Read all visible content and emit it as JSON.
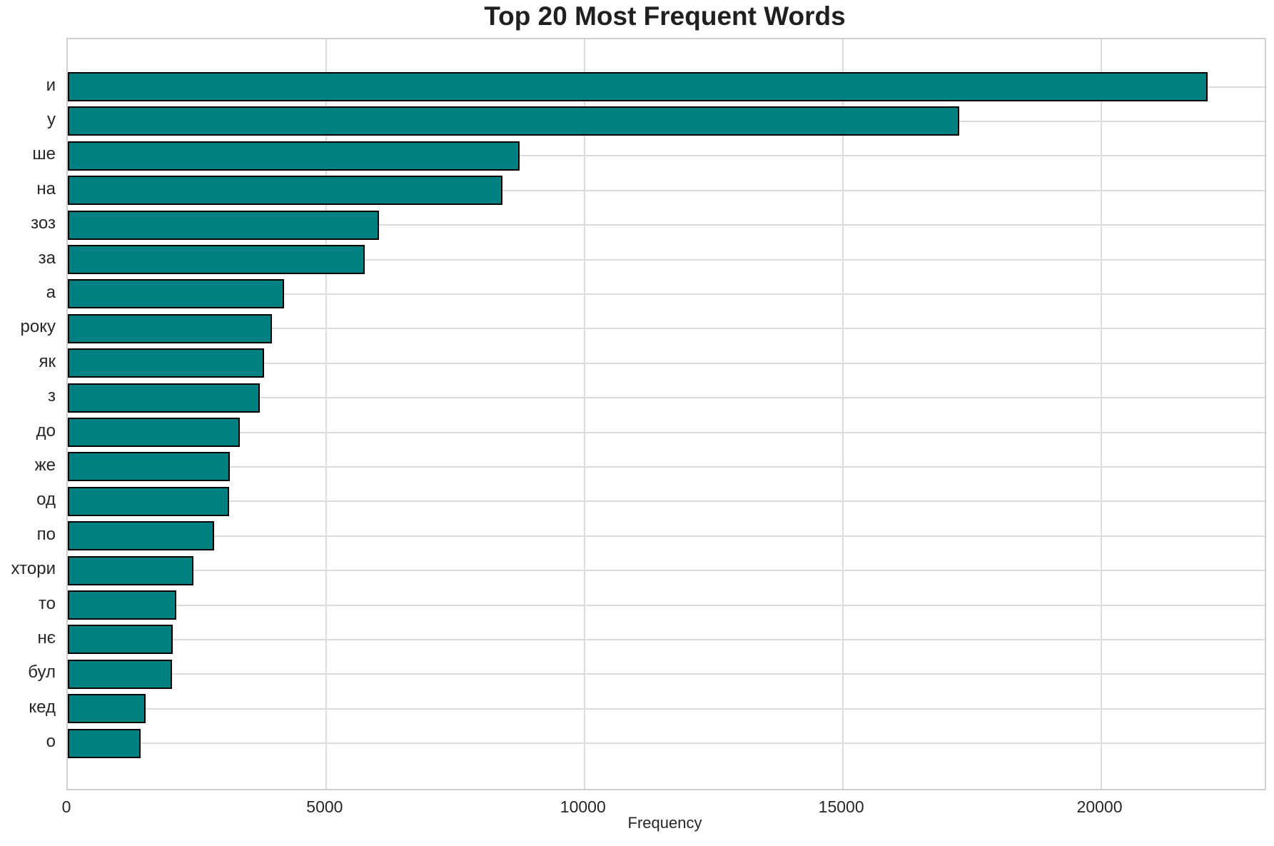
{
  "chart_data": {
    "type": "bar",
    "orientation": "horizontal",
    "title": "Top 20 Most Frequent Words",
    "xlabel": "Frequency",
    "ylabel": "",
    "categories": [
      "и",
      "у",
      "ше",
      "на",
      "зоз",
      "за",
      "а",
      "року",
      "як",
      "з",
      "до",
      "же",
      "од",
      "по",
      "хтори",
      "то",
      "нє",
      "бул",
      "кед",
      "о"
    ],
    "values": [
      22070,
      17250,
      8740,
      8420,
      6020,
      5750,
      4190,
      3950,
      3800,
      3715,
      3330,
      3135,
      3120,
      2830,
      2430,
      2100,
      2030,
      2015,
      1505,
      1410
    ],
    "xlim": [
      0,
      23170
    ],
    "x_ticks": [
      0,
      5000,
      10000,
      15000,
      20000
    ],
    "grid": true,
    "legend": false,
    "bar_color": "#008080",
    "bar_edge_color": "#000000"
  }
}
